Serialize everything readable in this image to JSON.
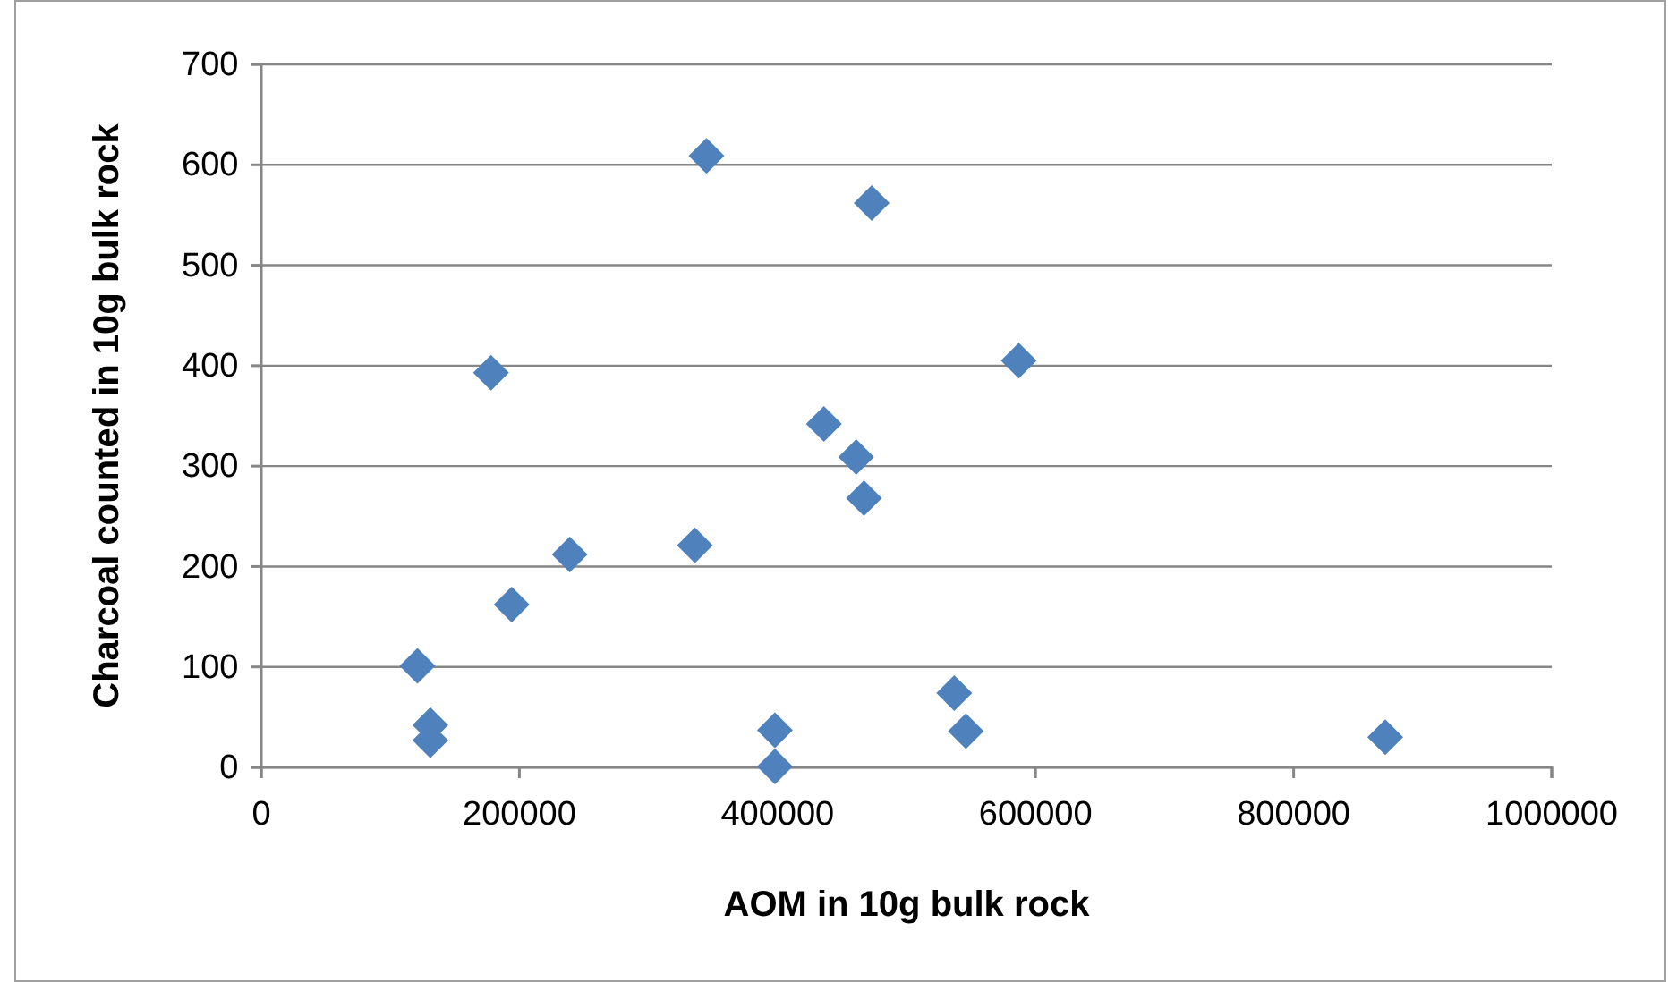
{
  "chart_data": {
    "type": "scatter",
    "xlabel": "AOM in 10g bulk rock",
    "ylabel": "Charcoal counted in 10g bulk rock",
    "x": [
      345000,
      473000,
      178000,
      587000,
      436000,
      461000,
      467000,
      336000,
      239000,
      194000,
      121000,
      131000,
      131000,
      398000,
      398000,
      537000,
      546000,
      871000
    ],
    "series": [
      {
        "color": "#4f81bd",
        "values": [
          609,
          562,
          393,
          405,
          342,
          309,
          268,
          221,
          212,
          162,
          101,
          42,
          27,
          37,
          1,
          74,
          36,
          30
        ]
      }
    ],
    "xlim": [
      0,
      1000000
    ],
    "xticks": [
      0,
      200000,
      400000,
      600000,
      800000,
      1000000
    ],
    "ylim": [
      0,
      700
    ],
    "yticks": [
      0,
      100,
      200,
      300,
      400,
      500,
      600,
      700
    ],
    "grid": "y",
    "marker": "diamond"
  }
}
